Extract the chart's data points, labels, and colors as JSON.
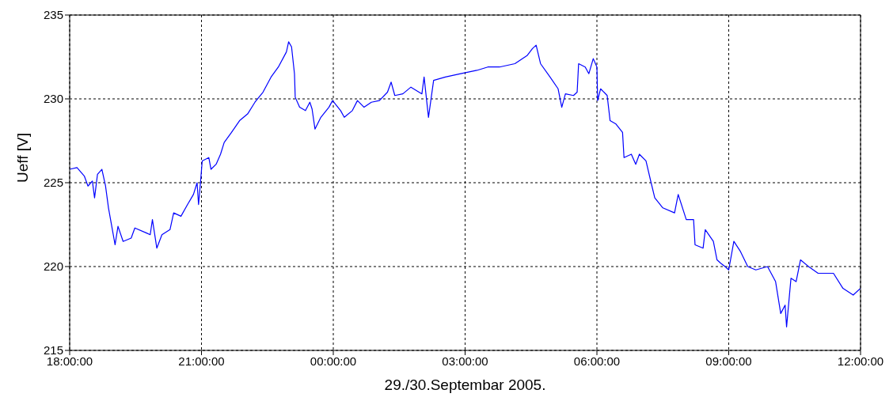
{
  "chart_data": {
    "type": "line",
    "xlabel": "29./30.Septembar 2005.",
    "ylabel": "Ueff [V]",
    "xlim": [
      "2005-09-29T18:00",
      "2005-09-30T12:00"
    ],
    "ylim": [
      215,
      235
    ],
    "xticks": [
      {
        "value": "2005-09-29T18:00",
        "label": "18:00:00"
      },
      {
        "value": "2005-09-29T21:00",
        "label": "21:00:00"
      },
      {
        "value": "2005-09-30T00:00",
        "label": "00:00:00"
      },
      {
        "value": "2005-09-30T03:00",
        "label": "03:00:00"
      },
      {
        "value": "2005-09-30T06:00",
        "label": "06:00:00"
      },
      {
        "value": "2005-09-30T09:00",
        "label": "09:00:00"
      },
      {
        "value": "2005-09-30T12:00",
        "label": "12:00:00"
      }
    ],
    "yticks": [
      215,
      220,
      225,
      230,
      235
    ],
    "grid": true,
    "marker": "none",
    "line_style": "solid",
    "series": [
      {
        "color": "#0000ff",
        "x": [
          "2005-09-29T18:00",
          "2005-09-29T18:10",
          "2005-09-29T18:20",
          "2005-09-29T18:25",
          "2005-09-29T18:31",
          "2005-09-29T18:34",
          "2005-09-29T18:38",
          "2005-09-29T18:44",
          "2005-09-29T18:49",
          "2005-09-29T18:53",
          "2005-09-29T19:02",
          "2005-09-29T19:06",
          "2005-09-29T19:13",
          "2005-09-29T19:24",
          "2005-09-29T19:29",
          "2005-09-29T19:45",
          "2005-09-29T19:50",
          "2005-09-29T19:53",
          "2005-09-29T19:59",
          "2005-09-29T20:06",
          "2005-09-29T20:17",
          "2005-09-29T20:22",
          "2005-09-29T20:32",
          "2005-09-29T20:41",
          "2005-09-29T20:49",
          "2005-09-29T20:54",
          "2005-09-29T20:56",
          "2005-09-29T20:59",
          "2005-09-29T21:01",
          "2005-09-29T21:10",
          "2005-09-29T21:13",
          "2005-09-29T21:20",
          "2005-09-29T21:26",
          "2005-09-29T21:31",
          "2005-09-29T21:41",
          "2005-09-29T21:52",
          "2005-09-29T22:03",
          "2005-09-29T22:13",
          "2005-09-29T22:24",
          "2005-09-29T22:35",
          "2005-09-29T22:45",
          "2005-09-29T22:56",
          "2005-09-29T22:59",
          "2005-09-29T23:03",
          "2005-09-29T23:07",
          "2005-09-29T23:08",
          "2005-09-29T23:14",
          "2005-09-29T23:22",
          "2005-09-29T23:28",
          "2005-09-29T23:31",
          "2005-09-29T23:35",
          "2005-09-29T23:43",
          "2005-09-29T23:54",
          "2005-09-29T23:59",
          "2005-09-30T00:10",
          "2005-09-30T00:15",
          "2005-09-30T00:26",
          "2005-09-30T00:33",
          "2005-09-30T00:42",
          "2005-09-30T00:52",
          "2005-09-30T01:03",
          "2005-09-30T01:14",
          "2005-09-30T01:19",
          "2005-09-30T01:24",
          "2005-09-30T01:35",
          "2005-09-30T01:46",
          "2005-09-30T02:01",
          "2005-09-30T02:04",
          "2005-09-30T02:10",
          "2005-09-30T02:17",
          "2005-09-30T02:33",
          "2005-09-30T02:54",
          "2005-09-30T03:16",
          "2005-09-30T03:31",
          "2005-09-30T03:47",
          "2005-09-30T04:08",
          "2005-09-30T04:25",
          "2005-09-30T04:32",
          "2005-09-30T04:37",
          "2005-09-30T04:43",
          "2005-09-30T04:56",
          "2005-09-30T05:07",
          "2005-09-30T05:12",
          "2005-09-30T05:17",
          "2005-09-30T05:28",
          "2005-09-30T05:33",
          "2005-09-30T05:35",
          "2005-09-30T05:44",
          "2005-09-30T05:49",
          "2005-09-30T05:55",
          "2005-09-30T06:00",
          "2005-09-30T06:01",
          "2005-09-30T06:05",
          "2005-09-30T06:14",
          "2005-09-30T06:18",
          "2005-09-30T06:26",
          "2005-09-30T06:35",
          "2005-09-30T06:37",
          "2005-09-30T06:47",
          "2005-09-30T06:53",
          "2005-09-30T06:58",
          "2005-09-30T07:07",
          "2005-09-30T07:14",
          "2005-09-30T07:19",
          "2005-09-30T07:30",
          "2005-09-30T07:46",
          "2005-09-30T07:51",
          "2005-09-30T08:02",
          "2005-09-30T08:12",
          "2005-09-30T08:14",
          "2005-09-30T08:25",
          "2005-09-30T08:28",
          "2005-09-30T08:39",
          "2005-09-30T08:44",
          "2005-09-30T08:49",
          "2005-09-30T08:55",
          "2005-09-30T09:00",
          "2005-09-30T09:07",
          "2005-09-30T09:16",
          "2005-09-30T09:26",
          "2005-09-30T09:37",
          "2005-09-30T09:53",
          "2005-09-30T10:04",
          "2005-09-30T10:11",
          "2005-09-30T10:17",
          "2005-09-30T10:19",
          "2005-09-30T10:25",
          "2005-09-30T10:32",
          "2005-09-30T10:38",
          "2005-09-30T10:49",
          "2005-09-30T11:02",
          "2005-09-30T11:23",
          "2005-09-30T11:36",
          "2005-09-30T11:50",
          "2005-09-30T12:00"
        ],
        "values": [
          225.8,
          225.9,
          225.4,
          224.8,
          225.1,
          224.1,
          225.5,
          225.8,
          224.8,
          223.5,
          221.3,
          222.4,
          221.5,
          221.7,
          222.3,
          222.0,
          221.9,
          222.8,
          221.1,
          221.9,
          222.2,
          223.2,
          223.0,
          223.7,
          224.3,
          225.0,
          223.7,
          225.2,
          226.3,
          226.5,
          225.8,
          226.1,
          226.7,
          227.4,
          228.0,
          228.7,
          229.1,
          229.8,
          230.4,
          231.3,
          231.9,
          232.8,
          233.4,
          233.1,
          231.5,
          230.1,
          229.5,
          229.3,
          229.8,
          229.4,
          228.2,
          228.9,
          229.5,
          229.9,
          229.3,
          228.9,
          229.3,
          229.9,
          229.5,
          229.8,
          229.9,
          230.4,
          231.0,
          230.2,
          230.3,
          230.7,
          230.3,
          231.3,
          228.9,
          231.1,
          231.3,
          231.5,
          231.7,
          231.9,
          231.9,
          232.1,
          232.6,
          233.0,
          233.2,
          232.1,
          231.3,
          230.6,
          229.5,
          230.3,
          230.2,
          230.4,
          232.1,
          231.9,
          231.5,
          232.4,
          231.9,
          229.9,
          230.6,
          230.2,
          228.7,
          228.5,
          228.0,
          226.5,
          226.7,
          226.1,
          226.7,
          226.3,
          225.0,
          224.1,
          223.5,
          223.2,
          224.3,
          222.8,
          222.8,
          221.3,
          221.1,
          222.2,
          221.5,
          220.4,
          220.2,
          220.0,
          219.8,
          221.5,
          220.9,
          220.0,
          219.8,
          220.0,
          219.1,
          217.2,
          217.7,
          216.4,
          219.3,
          219.1,
          220.4,
          220.0,
          219.6,
          219.6,
          218.7,
          218.3,
          218.7
        ]
      }
    ]
  }
}
